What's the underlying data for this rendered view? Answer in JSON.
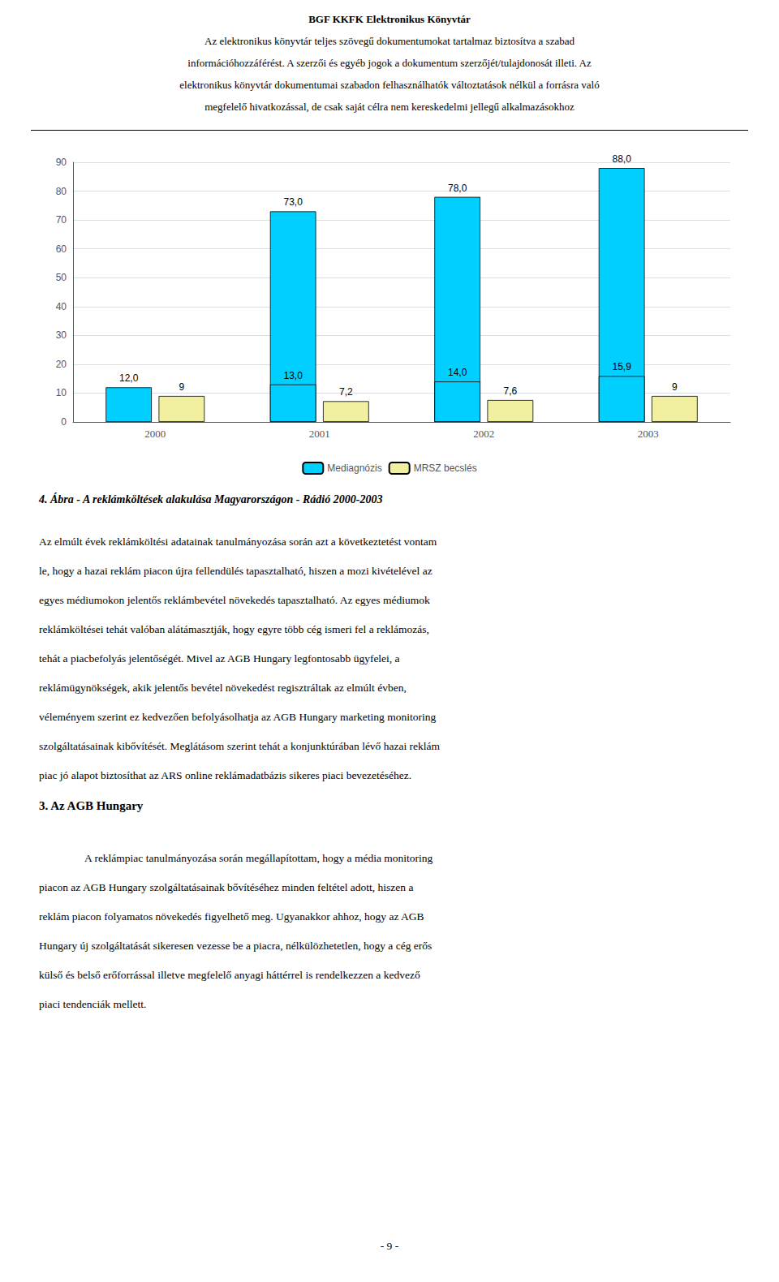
{
  "header": [
    "BGF KKFK Elektronikus Könyvtár",
    "Az elektronikus könyvtár teljes szövegű dokumentumokat tartalmaz biztosítva a szabad",
    "információhozzáférést. A szerzői és egyéb jogok a dokumentum szerzőjét/tulajdonosát illeti. Az",
    "elektronikus könyvtár dokumentumai szabadon felhasználhatók változtatások nélkül a forrásra való",
    "megfelelő hivatkozással, de csak saját célra nem kereskedelmi jellegű alkalmazásokhoz"
  ],
  "paragraphs": [
    [
      "Az elmúlt évek reklámköltési adatainak tanulmányozása során azt a következtetést vontam",
      "le, hogy a hazai reklám piacon újra fellendülés tapasztalható, hiszen a mozi kivételével az",
      "egyes médiumokon jelentős reklámbevétel növekedés tapasztalható. Az egyes médiumok",
      "reklámköltései tehát valóban alátámasztják, hogy egyre több cég ismeri fel a reklámozás,",
      "tehát a piacbefolyás jelentőségét. Mivel az AGB Hungary legfontosabb ügyfelei, a",
      "reklámügynökségek, akik jelentős bevétel növekedést regisztráltak az elmúlt évben,",
      "véleményem szerint ez kedvezően befolyásolhatja az AGB Hungary marketing monitoring",
      "szolgáltatásainak kibővítését. Meglátásom szerint tehát a konjunktúrában lévő hazai reklám",
      "piac jó alapot biztosíthat az ARS online reklámadatbázis sikeres piaci bevezetéséhez."
    ],
    [
      "A reklámpiac tanulmányozása során megállapítottam, hogy a média monitoring",
      "piacon az AGB Hungary szolgáltatásainak bővítéséhez minden feltétel adott, hiszen a",
      "reklám piacon folyamatos növekedés figyelhető meg. Ugyanakkor ahhoz, hogy az AGB",
      "Hungary új szolgáltatását sikeresen vezesse be a piacra, nélkülözhetetlen, hogy a cég erős",
      "külső és belső erőforrással illetve megfelelő anyagi háttérrel is rendelkezzen a kedvező",
      "piaci tendenciák mellett."
    ]
  ],
  "heading": "3.  Az AGB Hungary",
  "page_number": "- 9 -",
  "chart_data": {
    "type": "bar",
    "title": "4. Ábra - A reklámköltések alakulása Magyarországon - Rádió 2000-2003",
    "categories": [
      "2000",
      "2001",
      "2002",
      "2003"
    ],
    "series": [
      {
        "values": [
          null,
          73.0,
          78.0,
          88.0
        ],
        "value_labels": [
          null,
          "73,0",
          "78,0",
          "88,0"
        ],
        "color": "#00CFFF"
      },
      {
        "name": "Mediagnózis",
        "values": [
          12.0,
          13.0,
          14.0,
          15.9
        ],
        "value_labels": [
          "12,0",
          "13,0",
          "14,0",
          "15,9"
        ],
        "color": "#00CFFF"
      },
      {
        "name": "MRSZ becslés",
        "values": [
          9.0,
          7.2,
          7.6,
          9.0
        ],
        "value_labels": [
          "9",
          "7,2",
          "7,6",
          "9"
        ],
        "color": "#F0F0A0"
      }
    ],
    "ylim": [
      0,
      90
    ],
    "yticks": [
      0,
      10,
      20,
      30,
      40,
      50,
      60,
      70,
      80,
      90
    ],
    "grid": true,
    "legend": "bottom",
    "data_labels": true
  }
}
